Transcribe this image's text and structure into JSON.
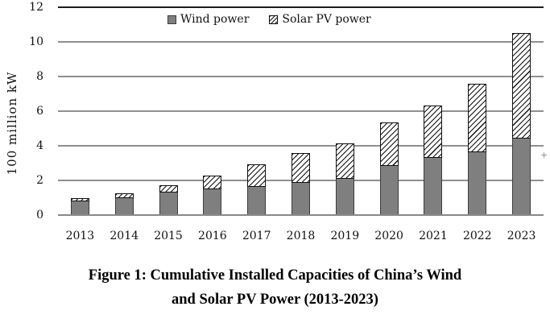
{
  "chart_data": {
    "type": "bar",
    "stacked": true,
    "categories": [
      "2013",
      "2014",
      "2015",
      "2016",
      "2017",
      "2018",
      "2019",
      "2020",
      "2021",
      "2022",
      "2023"
    ],
    "series": [
      {
        "name": "Wind power",
        "values": [
          0.77,
          0.96,
          1.29,
          1.49,
          1.64,
          1.84,
          2.1,
          2.82,
          3.28,
          3.65,
          4.41
        ],
        "fill": "solid",
        "color": "#7f7f7f"
      },
      {
        "name": "Solar PV power",
        "values": [
          0.19,
          0.28,
          0.43,
          0.77,
          1.3,
          1.74,
          2.04,
          2.53,
          3.06,
          3.93,
          6.09
        ],
        "fill": "diagonal-hatch",
        "color": "#ffffff",
        "hatch_color": "#111111"
      }
    ],
    "title": "Figure 1: Cumulative Installed Capacities of China’s Wind and Solar PV Power (2013-2023)",
    "xlabel": "",
    "ylabel": "100 million kW",
    "ylim": [
      0,
      12
    ],
    "yticks": [
      12,
      10,
      8,
      6,
      4,
      2,
      0
    ],
    "grid": true,
    "legend_position": "top-center"
  },
  "axis": {
    "ylabel": "100 million kW",
    "ytick_labels": [
      "12",
      "10",
      "8",
      "6",
      "4",
      "2",
      "0"
    ]
  },
  "legend": {
    "items": [
      {
        "label": "Wind power",
        "marker": "gray-square"
      },
      {
        "label": "Solar PV power",
        "marker": "hatched-square"
      }
    ]
  },
  "caption": {
    "line1": "Figure 1: Cumulative Installed Capacities of China’s Wind",
    "line2": "and Solar PV Power (2013-2023)"
  },
  "plus_marker": "+",
  "colors": {
    "wind_bar": "#7f7f7f",
    "wind_border": "#3d3d3d",
    "hatch_line": "#111111",
    "gridline": "#8f8f8f",
    "top_border": "#1c1c1c",
    "baseline": "#898989"
  }
}
